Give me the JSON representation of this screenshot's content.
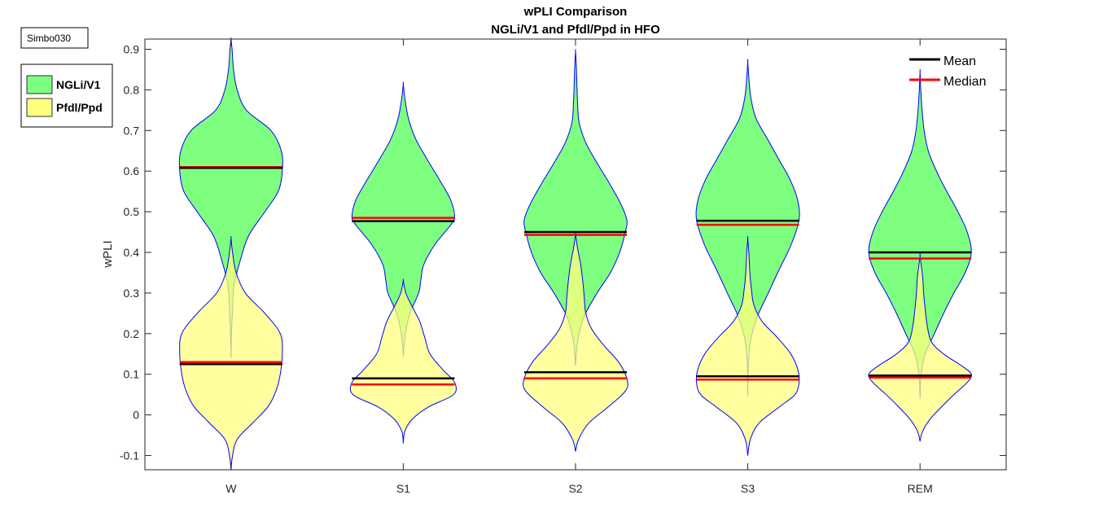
{
  "figure_tag": "Simbo030",
  "chart_data": {
    "type": "violin",
    "title": [
      "wPLI Comparison",
      "NGLi/V1 and Pfdl/Ppd in HFO"
    ],
    "xlabel": "",
    "ylabel": "wPLI",
    "categories": [
      "W",
      "S1",
      "S2",
      "S3",
      "REM"
    ],
    "ylim": [
      -0.135,
      0.925
    ],
    "yticks": [
      -0.1,
      0,
      0.1,
      0.2,
      0.3,
      0.4,
      0.5,
      0.6,
      0.7,
      0.8,
      0.9
    ],
    "ytick_labels": [
      "-0.1",
      "0",
      "0.1",
      "0.2",
      "0.3",
      "0.4",
      "0.5",
      "0.6",
      "0.7",
      "0.8",
      "0.9"
    ],
    "grid": false,
    "colors": {
      "group1_fill": "#7fff7f",
      "group2_fill": "#ffff7f",
      "violin_edge": "#0000ff",
      "mean_line": "#000000",
      "median_line": "#ff0000"
    },
    "series": [
      {
        "name": "NGLi/V1",
        "color": "#7fff7f",
        "violins": [
          {
            "min": 0.14,
            "max": 0.925,
            "mean": 0.608,
            "median": 0.61,
            "profile": [
              [
                0.14,
                0
              ],
              [
                0.2,
                0.01
              ],
              [
                0.26,
                0.03
              ],
              [
                0.32,
                0.06
              ],
              [
                0.38,
                0.18
              ],
              [
                0.44,
                0.34
              ],
              [
                0.5,
                0.66
              ],
              [
                0.55,
                0.92
              ],
              [
                0.6,
                1.0
              ],
              [
                0.65,
                0.98
              ],
              [
                0.7,
                0.78
              ],
              [
                0.75,
                0.3
              ],
              [
                0.8,
                0.12
              ],
              [
                0.85,
                0.05
              ],
              [
                0.9,
                0.02
              ],
              [
                0.925,
                0
              ]
            ]
          },
          {
            "min": 0.145,
            "max": 0.815,
            "mean": 0.477,
            "median": 0.485,
            "profile": [
              [
                0.145,
                0
              ],
              [
                0.2,
                0.04
              ],
              [
                0.25,
                0.13
              ],
              [
                0.3,
                0.3
              ],
              [
                0.33,
                0.34
              ],
              [
                0.37,
                0.4
              ],
              [
                0.42,
                0.62
              ],
              [
                0.47,
                0.94
              ],
              [
                0.49,
                1.0
              ],
              [
                0.53,
                0.92
              ],
              [
                0.58,
                0.7
              ],
              [
                0.63,
                0.46
              ],
              [
                0.68,
                0.24
              ],
              [
                0.73,
                0.1
              ],
              [
                0.78,
                0.03
              ],
              [
                0.815,
                0
              ]
            ]
          },
          {
            "min": 0.12,
            "max": 0.895,
            "mean": 0.45,
            "median": 0.443,
            "profile": [
              [
                0.12,
                0
              ],
              [
                0.18,
                0.04
              ],
              [
                0.24,
                0.16
              ],
              [
                0.3,
                0.42
              ],
              [
                0.35,
                0.68
              ],
              [
                0.4,
                0.86
              ],
              [
                0.45,
                0.97
              ],
              [
                0.48,
                1.0
              ],
              [
                0.52,
                0.88
              ],
              [
                0.57,
                0.66
              ],
              [
                0.62,
                0.42
              ],
              [
                0.67,
                0.2
              ],
              [
                0.72,
                0.07
              ],
              [
                0.77,
                0.04
              ],
              [
                0.82,
                0.025
              ],
              [
                0.86,
                0.015
              ],
              [
                0.895,
                0
              ]
            ]
          },
          {
            "min": 0.045,
            "max": 0.87,
            "mean": 0.478,
            "median": 0.468,
            "profile": [
              [
                0.045,
                0
              ],
              [
                0.12,
                0.01
              ],
              [
                0.18,
                0.05
              ],
              [
                0.24,
                0.18
              ],
              [
                0.3,
                0.4
              ],
              [
                0.36,
                0.62
              ],
              [
                0.42,
                0.85
              ],
              [
                0.48,
                1.0
              ],
              [
                0.53,
                0.97
              ],
              [
                0.58,
                0.82
              ],
              [
                0.63,
                0.6
              ],
              [
                0.68,
                0.38
              ],
              [
                0.73,
                0.16
              ],
              [
                0.78,
                0.06
              ],
              [
                0.83,
                0.02
              ],
              [
                0.87,
                0
              ]
            ]
          },
          {
            "min": 0.04,
            "max": 0.845,
            "mean": 0.4,
            "median": 0.385,
            "profile": [
              [
                0.04,
                0
              ],
              [
                0.1,
                0.02
              ],
              [
                0.15,
                0.1
              ],
              [
                0.2,
                0.28
              ],
              [
                0.25,
                0.46
              ],
              [
                0.3,
                0.66
              ],
              [
                0.35,
                0.88
              ],
              [
                0.4,
                1.0
              ],
              [
                0.45,
                0.92
              ],
              [
                0.5,
                0.74
              ],
              [
                0.55,
                0.52
              ],
              [
                0.6,
                0.32
              ],
              [
                0.65,
                0.16
              ],
              [
                0.7,
                0.08
              ],
              [
                0.75,
                0.04
              ],
              [
                0.8,
                0.015
              ],
              [
                0.845,
                0
              ]
            ]
          }
        ]
      },
      {
        "name": "Pfdl/Ppd",
        "color": "#ffff7f",
        "violins": [
          {
            "min": -0.135,
            "max": 0.435,
            "mean": 0.125,
            "median": 0.13,
            "profile": [
              [
                -0.135,
                0
              ],
              [
                -0.1,
                0.03
              ],
              [
                -0.06,
                0.12
              ],
              [
                -0.02,
                0.42
              ],
              [
                0.02,
                0.72
              ],
              [
                0.06,
                0.88
              ],
              [
                0.1,
                0.96
              ],
              [
                0.15,
                1.0
              ],
              [
                0.2,
                0.96
              ],
              [
                0.25,
                0.66
              ],
              [
                0.3,
                0.28
              ],
              [
                0.35,
                0.1
              ],
              [
                0.4,
                0.03
              ],
              [
                0.435,
                0
              ]
            ]
          },
          {
            "min": -0.07,
            "max": 0.33,
            "mean": 0.09,
            "median": 0.075,
            "profile": [
              [
                -0.07,
                0
              ],
              [
                -0.04,
                0.03
              ],
              [
                -0.01,
                0.18
              ],
              [
                0.02,
                0.5
              ],
              [
                0.05,
                0.98
              ],
              [
                0.08,
                1.0
              ],
              [
                0.11,
                0.78
              ],
              [
                0.15,
                0.52
              ],
              [
                0.19,
                0.42
              ],
              [
                0.23,
                0.32
              ],
              [
                0.27,
                0.16
              ],
              [
                0.3,
                0.05
              ],
              [
                0.33,
                0
              ]
            ]
          },
          {
            "min": -0.09,
            "max": 0.445,
            "mean": 0.105,
            "median": 0.09,
            "profile": [
              [
                -0.09,
                0
              ],
              [
                -0.06,
                0.06
              ],
              [
                -0.02,
                0.26
              ],
              [
                0.02,
                0.64
              ],
              [
                0.06,
                0.98
              ],
              [
                0.09,
                1.0
              ],
              [
                0.13,
                0.84
              ],
              [
                0.17,
                0.56
              ],
              [
                0.21,
                0.32
              ],
              [
                0.25,
                0.2
              ],
              [
                0.29,
                0.17
              ],
              [
                0.33,
                0.14
              ],
              [
                0.37,
                0.1
              ],
              [
                0.41,
                0.04
              ],
              [
                0.445,
                0
              ]
            ]
          },
          {
            "min": -0.1,
            "max": 0.435,
            "mean": 0.095,
            "median": 0.087,
            "profile": [
              [
                -0.1,
                0
              ],
              [
                -0.06,
                0.05
              ],
              [
                -0.02,
                0.22
              ],
              [
                0.02,
                0.62
              ],
              [
                0.05,
                0.92
              ],
              [
                0.08,
                1.0
              ],
              [
                0.11,
                0.98
              ],
              [
                0.15,
                0.84
              ],
              [
                0.19,
                0.58
              ],
              [
                0.23,
                0.28
              ],
              [
                0.27,
                0.12
              ],
              [
                0.31,
                0.07
              ],
              [
                0.35,
                0.04
              ],
              [
                0.4,
                0.02
              ],
              [
                0.435,
                0
              ]
            ]
          },
          {
            "min": -0.065,
            "max": 0.39,
            "mean": 0.097,
            "median": 0.092,
            "profile": [
              [
                -0.065,
                0
              ],
              [
                -0.04,
                0.05
              ],
              [
                -0.01,
                0.2
              ],
              [
                0.02,
                0.42
              ],
              [
                0.05,
                0.66
              ],
              [
                0.08,
                0.92
              ],
              [
                0.1,
                1.0
              ],
              [
                0.12,
                0.82
              ],
              [
                0.15,
                0.46
              ],
              [
                0.18,
                0.22
              ],
              [
                0.22,
                0.14
              ],
              [
                0.26,
                0.1
              ],
              [
                0.3,
                0.07
              ],
              [
                0.34,
                0.05
              ],
              [
                0.39,
                0
              ]
            ]
          }
        ]
      }
    ],
    "legend_stats": {
      "placement": "top-right",
      "entries": [
        {
          "label": "Mean",
          "color": "#000000"
        },
        {
          "label": "Median",
          "color": "#ff0000"
        }
      ]
    },
    "legend_groups": {
      "placement": "outside-top-left",
      "entries": [
        {
          "label": "NGLi/V1",
          "color": "#7fff7f"
        },
        {
          "label": "Pfdl/Ppd",
          "color": "#ffff7f"
        }
      ]
    }
  }
}
